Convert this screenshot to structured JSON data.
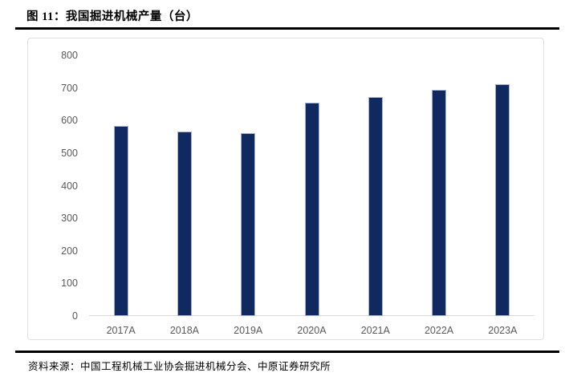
{
  "figure": {
    "title": "图 11：我国掘进机械产量（台）",
    "source": "资料来源：中国工程机械工业协会掘进机械分会、中原证券研究所"
  },
  "chart_data": {
    "type": "bar",
    "title": "我国掘进机械产量（台）",
    "categories": [
      "2017A",
      "2018A",
      "2019A",
      "2020A",
      "2021A",
      "2022A",
      "2023A"
    ],
    "values": [
      583,
      565,
      561,
      656,
      673,
      694,
      711
    ],
    "xlabel": "",
    "ylabel": "",
    "ylim": [
      0,
      800
    ],
    "yticks": [
      0,
      100,
      200,
      300,
      400,
      500,
      600,
      700,
      800
    ],
    "grid": false,
    "legend_position": "none",
    "colors": {
      "bar_fill": "#112961",
      "bar_border": "#a7b3d1",
      "axis_label": "#595959",
      "axis_line": "#d9d9d9",
      "frame_border": "#e0e0e0",
      "rule": "#000000"
    }
  }
}
